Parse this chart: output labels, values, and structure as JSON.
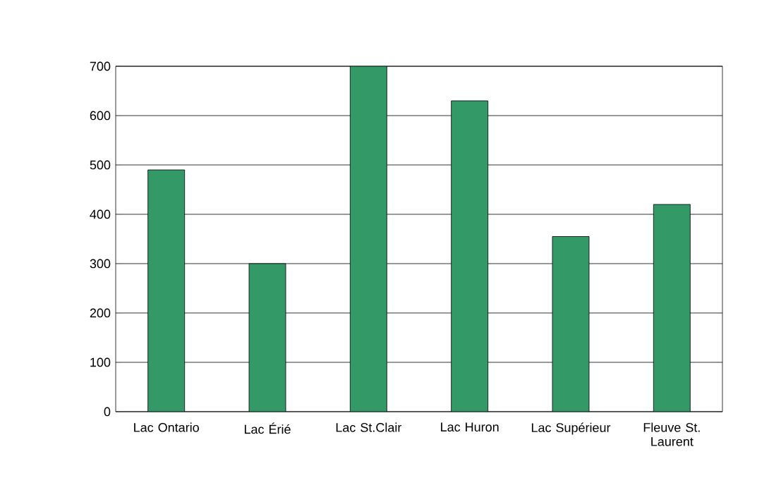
{
  "chart_data": {
    "type": "bar",
    "categories": [
      "Lac Ontario",
      "Lac Érié",
      "Lac St.Clair",
      "Lac Huron",
      "Lac Supérieur",
      "Fleuve St. Laurent"
    ],
    "values": [
      490,
      300,
      700,
      630,
      355,
      420
    ],
    "color": "#339966",
    "ylim": [
      0,
      700
    ],
    "yticks": [
      0,
      100,
      200,
      300,
      400,
      500,
      600,
      700
    ],
    "grid": "y"
  }
}
